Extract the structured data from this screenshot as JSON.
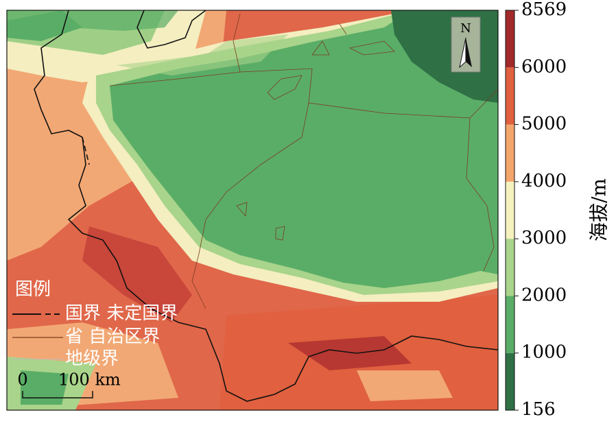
{
  "north": "N",
  "legend": {
    "title": "图例",
    "items": [
      "国界 未定国界",
      "省 自治区界",
      "地级界"
    ]
  },
  "scale_bar": {
    "start": "0",
    "end": "100 km"
  },
  "colorbar": {
    "label": "海拔/m",
    "breaks": [
      156,
      1000,
      2000,
      3000,
      4000,
      5000,
      6000,
      8569
    ],
    "colors": [
      "#2f7045",
      "#5aad67",
      "#a9d48b",
      "#f6f2bf",
      "#f4a56c",
      "#e0603f",
      "#a22a2b"
    ]
  }
}
